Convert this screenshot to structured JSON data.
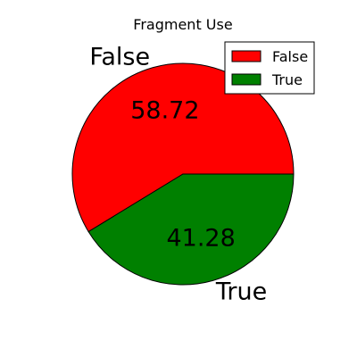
{
  "chart_data": {
    "type": "pie",
    "title": "Fragment Use",
    "slices": [
      {
        "label": "False",
        "value": 58.72,
        "pct_label": "58.72",
        "color": "#ff0000"
      },
      {
        "label": "True",
        "value": 41.28,
        "pct_label": "41.28",
        "color": "#008000"
      }
    ],
    "legend": {
      "placement": "top-right",
      "entries": [
        "False",
        "True"
      ]
    }
  }
}
